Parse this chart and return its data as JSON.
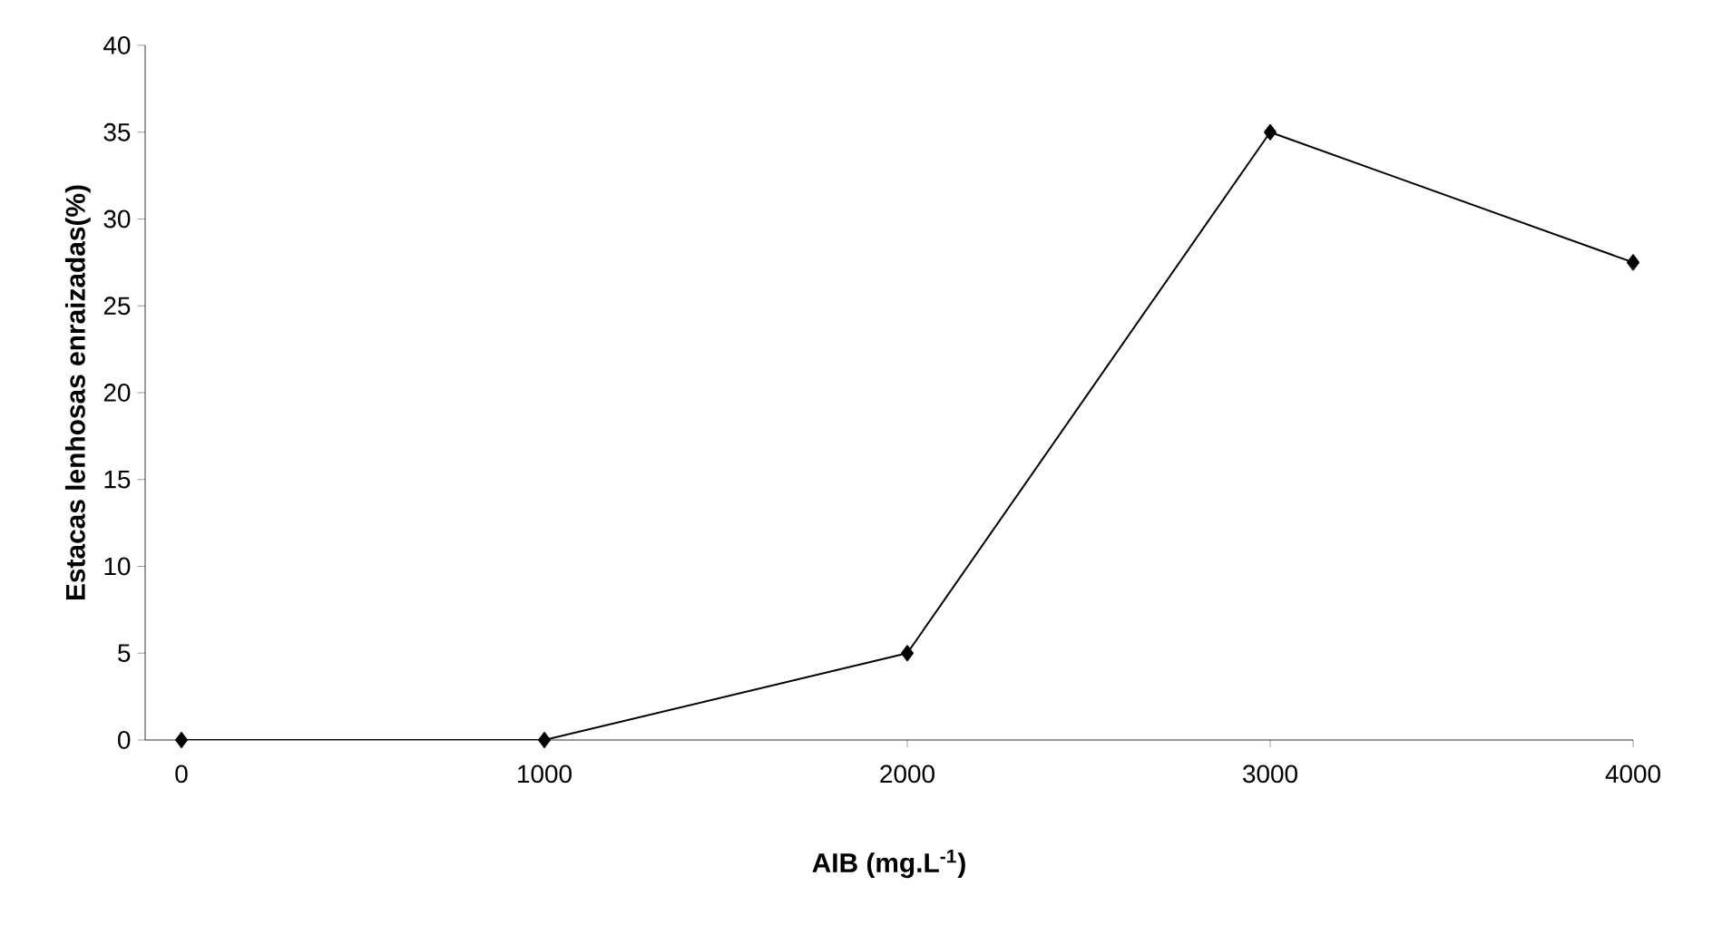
{
  "chart_data": {
    "type": "line",
    "xlabel": "AIB (mg.L$^{-1}$)",
    "ylabel": "Estacas lenhosas enraizadas(%)",
    "x": [
      0,
      1000,
      2000,
      3000,
      4000
    ],
    "series": [
      {
        "color": "#000000",
        "values": [
          0,
          0,
          5,
          35,
          27.5
        ]
      }
    ],
    "xlim": [
      -100,
      4000
    ],
    "xticks": [
      0,
      1000,
      2000,
      3000,
      4000
    ],
    "ylim": [
      0,
      40
    ],
    "yticks": [
      0,
      5,
      10,
      15,
      20,
      25,
      30,
      35,
      40
    ],
    "marker": "diamond",
    "line_style": "solid"
  }
}
